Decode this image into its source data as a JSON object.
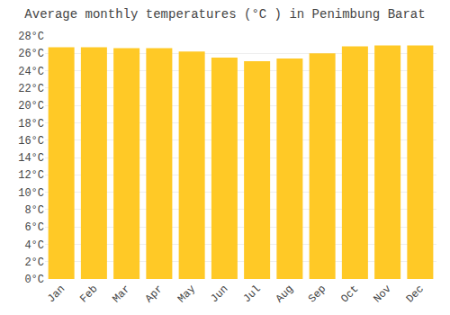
{
  "chart_data": {
    "type": "bar",
    "title": "Average monthly temperatures (°C ) in Penimbung Barat",
    "categories": [
      "Jan",
      "Feb",
      "Mar",
      "Apr",
      "May",
      "Jun",
      "Jul",
      "Aug",
      "Sep",
      "Oct",
      "Nov",
      "Dec"
    ],
    "values": [
      26.7,
      26.7,
      26.6,
      26.6,
      26.2,
      25.5,
      25.1,
      25.4,
      26.0,
      26.8,
      26.9,
      26.9
    ],
    "color": "#FFC926",
    "ylim": [
      0,
      28
    ],
    "yticks": [
      {
        "value": 0,
        "label": "0°C"
      },
      {
        "value": 2,
        "label": "2°C"
      },
      {
        "value": 4,
        "label": "4°C"
      },
      {
        "value": 6,
        "label": "6°C"
      },
      {
        "value": 8,
        "label": "8°C"
      },
      {
        "value": 10,
        "label": "10°C"
      },
      {
        "value": 12,
        "label": "12°C"
      },
      {
        "value": 14,
        "label": "14°C"
      },
      {
        "value": 16,
        "label": "16°C"
      },
      {
        "value": 18,
        "label": "18°C"
      },
      {
        "value": 20,
        "label": "20°C"
      },
      {
        "value": 22,
        "label": "22°C"
      },
      {
        "value": 24,
        "label": "24°C"
      },
      {
        "value": 26,
        "label": "26°C"
      },
      {
        "value": 28,
        "label": "28°C"
      }
    ],
    "grid": true
  }
}
